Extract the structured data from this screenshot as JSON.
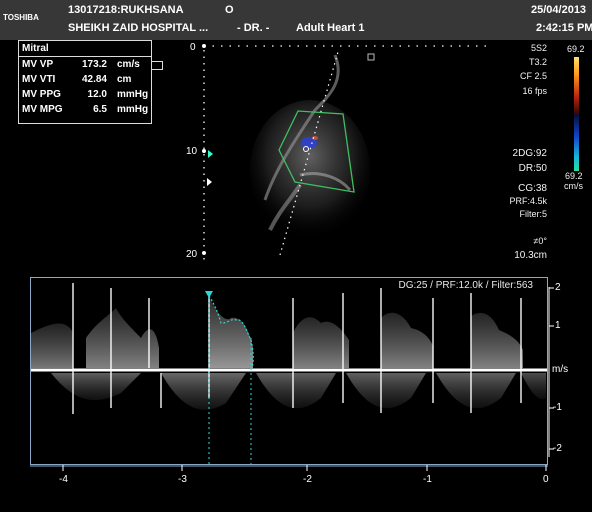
{
  "header": {
    "brand": "TOSHIBA",
    "patient": "13017218:RUKHSANA",
    "marker": "O",
    "hospital": "SHEIKH ZAID HOSPITAL ...",
    "doctor": "- DR. -",
    "preset": "Adult Heart 1",
    "date": "25/04/2013",
    "time": "2:42:15 PM"
  },
  "measurements": {
    "title": "Mitral",
    "rows": [
      {
        "label": "MV VP",
        "value": "173.2",
        "unit": "cm/s"
      },
      {
        "label": "MV VTI",
        "value": "42.84",
        "unit": "cm"
      },
      {
        "label": "MV PPG",
        "value": "12.0",
        "unit": "mmHg"
      },
      {
        "label": "MV MPG",
        "value": "6.5",
        "unit": "mmHg"
      }
    ]
  },
  "depth_scale": {
    "labels": [
      "0",
      "10",
      "20"
    ]
  },
  "imaging_params": {
    "probe": "5S2",
    "t": "T3.2",
    "cf": "CF 2.5",
    "fps": "16 fps",
    "dg": "2DG:92",
    "dr": "DR:50",
    "cg": "CG:38",
    "prf": "PRF:4.5k",
    "filter": "Filter:5",
    "angle": "≠0°",
    "depth": "10.3cm"
  },
  "color_bar": {
    "top": "69.2",
    "bottom": "69.2",
    "unit": "cm/s"
  },
  "doppler": {
    "settings": "DG:25 /   PRF:12.0k / Filter:563",
    "velocity_unit": "m/s",
    "velocity_ticks": [
      "2",
      "1",
      "-1",
      "-2"
    ],
    "time_ticks": [
      "-4",
      "-3",
      "-2",
      "-1",
      "0"
    ]
  }
}
